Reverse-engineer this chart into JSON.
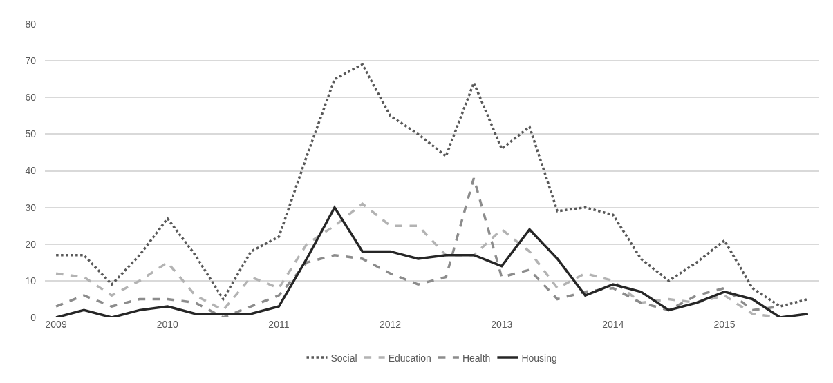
{
  "chart_data": {
    "type": "line",
    "x": [
      2009,
      2009.25,
      2009.5,
      2009.75,
      2010,
      2010.25,
      2010.5,
      2010.75,
      2011,
      2011.25,
      2011.5,
      2011.75,
      2012,
      2012.25,
      2012.5,
      2012.75,
      2013,
      2013.25,
      2013.5,
      2013.75,
      2014,
      2014.25,
      2014.5,
      2014.75,
      2015,
      2015.25,
      2015.5,
      2015.75
    ],
    "series": [
      {
        "name": "Social",
        "color": "#595959",
        "line_style": "dotted",
        "values": [
          17,
          17,
          9,
          17,
          27,
          17,
          5,
          18,
          22,
          44,
          65,
          69,
          55,
          50,
          44,
          64,
          46,
          52,
          29,
          30,
          28,
          16,
          10,
          15,
          21,
          8,
          3,
          5
        ]
      },
      {
        "name": "Education",
        "color": "#b3b3b3",
        "line_style": "dashed",
        "values": [
          12,
          11,
          6,
          10,
          15,
          6,
          2,
          11,
          8,
          20,
          25,
          31,
          25,
          25,
          17,
          17,
          24,
          18,
          8,
          12,
          10,
          4,
          5,
          4,
          6,
          1,
          0,
          null
        ]
      },
      {
        "name": "Health",
        "color": "#8c8c8c",
        "line_style": "dashed",
        "values": [
          3,
          6,
          3,
          5,
          5,
          4,
          0,
          3,
          6,
          15,
          17,
          16,
          12,
          9,
          11,
          38,
          11,
          13,
          5,
          7,
          8,
          4,
          2,
          6,
          8,
          2,
          3,
          null
        ]
      },
      {
        "name": "Housing",
        "color": "#262626",
        "line_style": "solid",
        "values": [
          0,
          2,
          0,
          2,
          3,
          1,
          1,
          1,
          3,
          16,
          30,
          18,
          18,
          16,
          17,
          17,
          14,
          24,
          16,
          6,
          9,
          7,
          2,
          4,
          7,
          5,
          0,
          1
        ]
      }
    ],
    "xlim": [
      2008.9,
      2015.85
    ],
    "xticks": [
      2009,
      2010,
      2011,
      2012,
      2013,
      2014,
      2015
    ],
    "ylim": [
      0,
      80
    ],
    "yticks": [
      0,
      10,
      20,
      30,
      40,
      50,
      60,
      70,
      80
    ],
    "grid": "y",
    "legend": "bottom",
    "marker": "none"
  }
}
